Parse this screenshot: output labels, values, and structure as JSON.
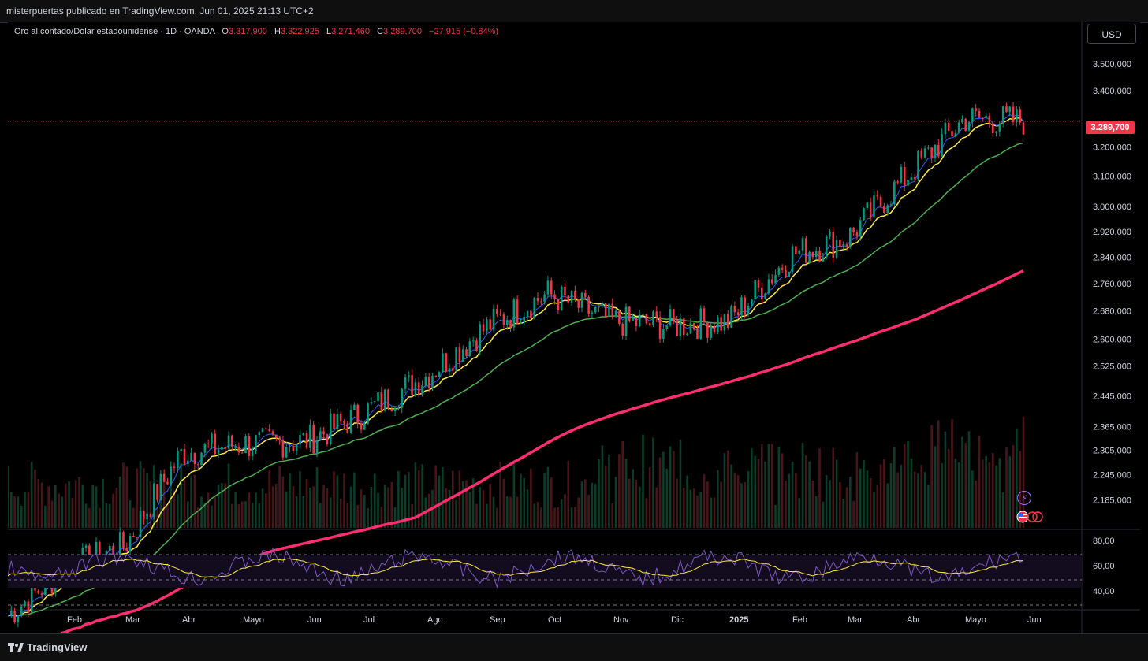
{
  "header": {
    "publish_line": "misterpuertas publicado en TradingView.com, Jun 01, 2025 21:13 UTC+2"
  },
  "symbol": {
    "name": "Oro al contado/Dólar estadounidense · 1D · OANDA",
    "o_label": "O",
    "o_value": "3.317,900",
    "h_label": "H",
    "h_value": "3.322,925",
    "l_label": "L",
    "l_value": "3.271,460",
    "c_label": "C",
    "c_value": "3.289,700",
    "change": "−27,915 (−0,84%)"
  },
  "currency_button": {
    "label": "USD"
  },
  "last_price_tag": {
    "value": "3.289,700"
  },
  "footer": {
    "brand": "TradingView"
  },
  "icons": {
    "bolt": "lightning-icon",
    "flags": "us-flag-events-icon"
  },
  "colors": {
    "up": "#089981",
    "down": "#f23645",
    "ema_fast": "#2962ff",
    "ema_mid": "#ffeb3b",
    "ema_slow": "#4caf50",
    "ma_long": "#ff2d72",
    "rsi": "#7e57c2",
    "rsi_ma": "#ffeb3b"
  },
  "chart_data": {
    "type": "candlestick",
    "title": "",
    "x_ticks": [
      "Feb",
      "Mar",
      "Abr",
      "Mayo",
      "Jun",
      "Jul",
      "Ago",
      "Sep",
      "Oct",
      "Nov",
      "Dic",
      "2025",
      "Feb",
      "Mar",
      "Abr",
      "Mayo",
      "Jun"
    ],
    "y_ticks": [
      "3.500,000",
      "3.400,000",
      "3.200,000",
      "3.100,000",
      "3.000,000",
      "2.920,000",
      "2.840,000",
      "2.760,000",
      "2.680,000",
      "2.600,000",
      "2.525,000",
      "2.445,000",
      "2.365,000",
      "2.305,000",
      "2.245,000",
      "2.185,000"
    ],
    "y_scale": "log",
    "last_close": 3289.7,
    "close_path": [
      [
        "Feb",
        2030
      ],
      [
        "Mar",
        2080
      ],
      [
        "Abr",
        2300
      ],
      [
        "Mayo",
        2320
      ],
      [
        "Jun",
        2330
      ],
      [
        "Jul",
        2400
      ],
      [
        "Ago",
        2500
      ],
      [
        "Sep",
        2640
      ],
      [
        "Oct",
        2730
      ],
      [
        "Nov",
        2650
      ],
      [
        "Dic",
        2640
      ],
      [
        "2025",
        2650
      ],
      [
        "Feb",
        2850
      ],
      [
        "Mar",
        2900
      ],
      [
        "Abr",
        3100
      ],
      [
        "Mayo",
        3300
      ],
      [
        "Jun",
        3290
      ]
    ],
    "moving_averages": [
      {
        "name": "",
        "color": "#2962ff"
      },
      {
        "name": "",
        "color": "#ffeb3b"
      },
      {
        "name": "",
        "color": "#4caf50"
      },
      {
        "name": "",
        "color": "#ff2d72"
      }
    ],
    "rsi_panel": {
      "y_ticks": [
        "80,00",
        "60,00",
        "40,00"
      ],
      "levels": [
        70,
        50,
        30
      ]
    }
  }
}
